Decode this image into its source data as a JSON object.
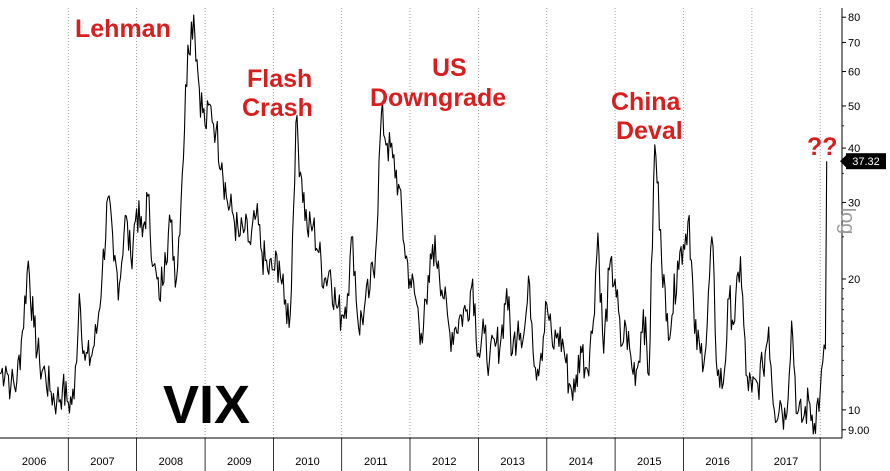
{
  "chart_data": {
    "type": "line",
    "title": "VIX",
    "ylabel": "log",
    "yscale": "log",
    "ylim": [
      8.8,
      84
    ],
    "xlim": [
      "2006-01-01",
      "2017-12-31"
    ],
    "grid": "vertical dotted lines at year boundaries",
    "x_tick_labels": [
      "2006",
      "2007",
      "2008",
      "2009",
      "2010",
      "2011",
      "2012",
      "2013",
      "2014",
      "2015",
      "2016",
      "2017"
    ],
    "y_tick_values": [
      9,
      10,
      20,
      30,
      40,
      50,
      60,
      70,
      80
    ],
    "y_tick_labels": [
      "9.00",
      "10",
      "20",
      "30",
      "40",
      "50",
      "60",
      "70",
      "80"
    ],
    "last_value_label": "37.32",
    "annotations": [
      {
        "text": "Lehman",
        "x": "2008-09-15"
      },
      {
        "text": "Flash Crash",
        "x": "2010-05-06"
      },
      {
        "text": "US Downgrade",
        "x": "2011-08-08"
      },
      {
        "text": "China Deval",
        "x": "2015-08-24"
      },
      {
        "text": "??",
        "x": "2018-02-05"
      }
    ],
    "series": [
      {
        "line_color": "#000000",
        "points": [
          [
            "2006-01-01",
            12.1
          ],
          [
            "2006-02-01",
            12.6
          ],
          [
            "2006-03-01",
            11.4
          ],
          [
            "2006-04-01",
            11.6
          ],
          [
            "2006-05-01",
            15.2
          ],
          [
            "2006-06-01",
            22.0
          ],
          [
            "2006-07-01",
            15.5
          ],
          [
            "2006-08-01",
            12.8
          ],
          [
            "2006-09-01",
            12.0
          ],
          [
            "2006-10-01",
            11.0
          ],
          [
            "2006-11-01",
            10.5
          ],
          [
            "2006-12-01",
            11.2
          ],
          [
            "2007-01-01",
            10.4
          ],
          [
            "2007-02-01",
            10.6
          ],
          [
            "2007-03-01",
            18.5
          ],
          [
            "2007-04-01",
            13.0
          ],
          [
            "2007-05-01",
            13.2
          ],
          [
            "2007-06-01",
            15.0
          ],
          [
            "2007-07-01",
            20.5
          ],
          [
            "2007-08-01",
            30.8
          ],
          [
            "2007-09-01",
            22.0
          ],
          [
            "2007-10-01",
            19.5
          ],
          [
            "2007-11-01",
            28.0
          ],
          [
            "2007-12-01",
            22.5
          ],
          [
            "2008-01-01",
            29.0
          ],
          [
            "2008-02-01",
            25.0
          ],
          [
            "2008-03-01",
            31.0
          ],
          [
            "2008-04-01",
            21.5
          ],
          [
            "2008-05-01",
            18.0
          ],
          [
            "2008-06-01",
            23.0
          ],
          [
            "2008-07-01",
            27.0
          ],
          [
            "2008-08-01",
            20.0
          ],
          [
            "2008-09-01",
            35.0
          ],
          [
            "2008-10-01",
            69.0
          ],
          [
            "2008-11-01",
            80.9
          ],
          [
            "2008-12-01",
            55.0
          ],
          [
            "2009-01-01",
            45.0
          ],
          [
            "2009-02-01",
            50.0
          ],
          [
            "2009-03-01",
            44.0
          ],
          [
            "2009-04-01",
            37.0
          ],
          [
            "2009-05-01",
            30.0
          ],
          [
            "2009-06-01",
            28.0
          ],
          [
            "2009-07-01",
            25.0
          ],
          [
            "2009-08-01",
            26.0
          ],
          [
            "2009-09-01",
            24.0
          ],
          [
            "2009-10-01",
            28.0
          ],
          [
            "2009-11-01",
            23.0
          ],
          [
            "2009-12-01",
            21.0
          ],
          [
            "2010-01-01",
            21.0
          ],
          [
            "2010-02-01",
            22.0
          ],
          [
            "2010-03-01",
            17.5
          ],
          [
            "2010-04-01",
            16.5
          ],
          [
            "2010-05-01",
            45.8
          ],
          [
            "2010-06-01",
            34.0
          ],
          [
            "2010-07-01",
            26.0
          ],
          [
            "2010-08-01",
            26.5
          ],
          [
            "2010-09-01",
            23.0
          ],
          [
            "2010-10-01",
            20.0
          ],
          [
            "2010-11-01",
            21.0
          ],
          [
            "2010-12-01",
            17.5
          ],
          [
            "2011-01-01",
            16.5
          ],
          [
            "2011-02-01",
            18.5
          ],
          [
            "2011-03-01",
            25.0
          ],
          [
            "2011-04-01",
            15.5
          ],
          [
            "2011-05-01",
            17.0
          ],
          [
            "2011-06-01",
            19.0
          ],
          [
            "2011-07-01",
            23.0
          ],
          [
            "2011-08-01",
            48.0
          ],
          [
            "2011-09-01",
            41.0
          ],
          [
            "2011-10-01",
            38.0
          ],
          [
            "2011-11-01",
            33.0
          ],
          [
            "2011-12-01",
            24.0
          ],
          [
            "2012-01-01",
            20.0
          ],
          [
            "2012-02-01",
            18.0
          ],
          [
            "2012-03-01",
            15.0
          ],
          [
            "2012-04-01",
            17.5
          ],
          [
            "2012-05-01",
            24.0
          ],
          [
            "2012-06-01",
            22.0
          ],
          [
            "2012-07-01",
            18.0
          ],
          [
            "2012-08-01",
            15.0
          ],
          [
            "2012-09-01",
            15.5
          ],
          [
            "2012-10-01",
            16.5
          ],
          [
            "2012-11-01",
            17.0
          ],
          [
            "2012-12-01",
            20.0
          ],
          [
            "2013-01-01",
            13.5
          ],
          [
            "2013-02-01",
            15.0
          ],
          [
            "2013-03-01",
            13.0
          ],
          [
            "2013-04-01",
            14.0
          ],
          [
            "2013-05-01",
            14.5
          ],
          [
            "2013-06-01",
            19.0
          ],
          [
            "2013-07-01",
            13.5
          ],
          [
            "2013-08-01",
            16.0
          ],
          [
            "2013-09-01",
            15.0
          ],
          [
            "2013-10-01",
            19.5
          ],
          [
            "2013-11-01",
            12.5
          ],
          [
            "2013-12-01",
            13.5
          ],
          [
            "2014-01-01",
            17.5
          ],
          [
            "2014-02-01",
            14.0
          ],
          [
            "2014-03-01",
            15.0
          ],
          [
            "2014-04-01",
            14.0
          ],
          [
            "2014-05-01",
            11.5
          ],
          [
            "2014-06-01",
            11.0
          ],
          [
            "2014-07-01",
            14.0
          ],
          [
            "2014-08-01",
            12.5
          ],
          [
            "2014-09-01",
            15.0
          ],
          [
            "2014-10-01",
            25.5
          ],
          [
            "2014-11-01",
            13.5
          ],
          [
            "2014-12-01",
            21.0
          ],
          [
            "2015-01-01",
            20.0
          ],
          [
            "2015-02-01",
            14.0
          ],
          [
            "2015-03-01",
            15.5
          ],
          [
            "2015-04-01",
            12.5
          ],
          [
            "2015-05-01",
            12.5
          ],
          [
            "2015-06-01",
            17.0
          ],
          [
            "2015-07-01",
            12.0
          ],
          [
            "2015-08-01",
            40.7
          ],
          [
            "2015-09-01",
            26.0
          ],
          [
            "2015-10-01",
            16.0
          ],
          [
            "2015-11-01",
            16.5
          ],
          [
            "2015-12-01",
            22.0
          ],
          [
            "2016-01-01",
            24.0
          ],
          [
            "2016-02-01",
            28.0
          ],
          [
            "2016-03-01",
            15.0
          ],
          [
            "2016-04-01",
            13.5
          ],
          [
            "2016-05-01",
            14.0
          ],
          [
            "2016-06-01",
            25.0
          ],
          [
            "2016-07-01",
            12.0
          ],
          [
            "2016-08-01",
            11.5
          ],
          [
            "2016-09-01",
            18.0
          ],
          [
            "2016-10-01",
            16.0
          ],
          [
            "2016-11-01",
            22.5
          ],
          [
            "2016-12-01",
            12.0
          ],
          [
            "2017-01-01",
            11.0
          ],
          [
            "2017-02-01",
            11.5
          ],
          [
            "2017-03-01",
            12.5
          ],
          [
            "2017-04-01",
            15.5
          ],
          [
            "2017-05-01",
            10.0
          ],
          [
            "2017-06-01",
            10.5
          ],
          [
            "2017-07-01",
            9.5
          ],
          [
            "2017-08-01",
            16.0
          ],
          [
            "2017-09-01",
            9.8
          ],
          [
            "2017-10-01",
            9.5
          ],
          [
            "2017-11-01",
            10.5
          ],
          [
            "2017-12-01",
            9.3
          ],
          [
            "2018-01-01",
            11.0
          ],
          [
            "2018-01-29",
            13.8
          ],
          [
            "2018-02-05",
            37.32
          ]
        ]
      }
    ]
  }
}
